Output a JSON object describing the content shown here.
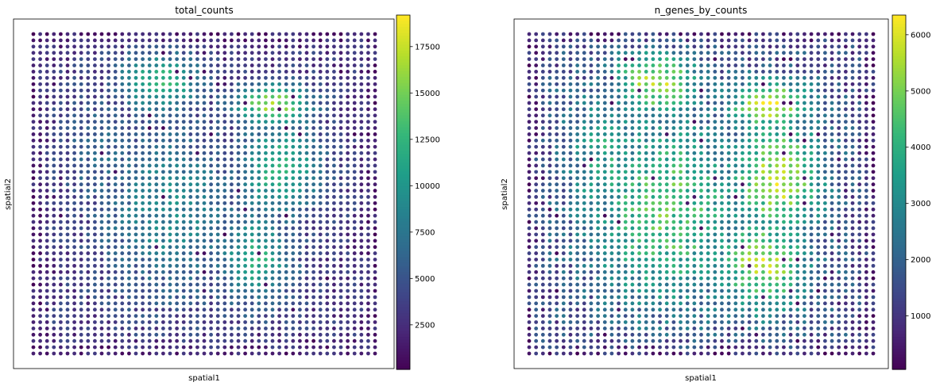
{
  "chart_data": [
    {
      "type": "scatter",
      "title": "total_counts",
      "xlabel": "spatial1",
      "ylabel": "spatial2",
      "x_ticks": false,
      "y_ticks": false,
      "grid": false,
      "colormap": "viridis",
      "colorbar": {
        "min": 100,
        "max": 19200,
        "ticks": [
          2500,
          5000,
          7500,
          10000,
          12500,
          15000,
          17500
        ],
        "tick_labels": [
          "2500",
          "5000",
          "7500",
          "10000",
          "12500",
          "15000",
          "17500"
        ]
      },
      "spots": {
        "cols": 51,
        "rows": 52,
        "value_field": "approximate per-spot values on a regular Visium-style hex grid",
        "background": 3200,
        "noise": 1800,
        "regions": [
          {
            "cx": 0.37,
            "cy": 0.15,
            "rx": 0.13,
            "ry": 0.1,
            "value": 12500
          },
          {
            "cx": 0.7,
            "cy": 0.22,
            "rx": 0.12,
            "ry": 0.07,
            "value": 16500
          },
          {
            "cx": 0.72,
            "cy": 0.42,
            "rx": 0.13,
            "ry": 0.16,
            "value": 12500
          },
          {
            "cx": 0.65,
            "cy": 0.7,
            "rx": 0.12,
            "ry": 0.16,
            "value": 11500
          },
          {
            "cx": 0.4,
            "cy": 0.55,
            "rx": 0.22,
            "ry": 0.3,
            "value": 8800
          },
          {
            "cx": 0.2,
            "cy": 0.38,
            "rx": 0.12,
            "ry": 0.22,
            "value": 6500
          }
        ]
      }
    },
    {
      "type": "scatter",
      "title": "n_genes_by_counts",
      "xlabel": "spatial1",
      "ylabel": "spatial2",
      "x_ticks": false,
      "y_ticks": false,
      "grid": false,
      "colormap": "viridis",
      "colorbar": {
        "min": 50,
        "max": 6350,
        "ticks": [
          1000,
          2000,
          3000,
          4000,
          5000,
          6000
        ],
        "tick_labels": [
          "1000",
          "2000",
          "3000",
          "4000",
          "5000",
          "6000"
        ]
      },
      "spots": {
        "cols": 51,
        "rows": 52,
        "value_field": "approximate per-spot values on a regular Visium-style hex grid",
        "background": 1500,
        "noise": 900,
        "regions": [
          {
            "cx": 0.37,
            "cy": 0.15,
            "rx": 0.13,
            "ry": 0.11,
            "value": 5500
          },
          {
            "cx": 0.7,
            "cy": 0.22,
            "rx": 0.13,
            "ry": 0.08,
            "value": 6000
          },
          {
            "cx": 0.72,
            "cy": 0.45,
            "rx": 0.14,
            "ry": 0.2,
            "value": 5700
          },
          {
            "cx": 0.68,
            "cy": 0.72,
            "rx": 0.13,
            "ry": 0.16,
            "value": 5600
          },
          {
            "cx": 0.4,
            "cy": 0.55,
            "rx": 0.24,
            "ry": 0.33,
            "value": 4600
          },
          {
            "cx": 0.22,
            "cy": 0.4,
            "rx": 0.13,
            "ry": 0.25,
            "value": 3600
          }
        ]
      }
    }
  ]
}
